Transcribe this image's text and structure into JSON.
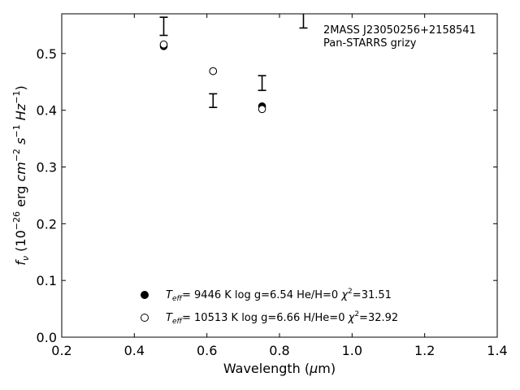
{
  "chart_data": {
    "type": "scatter",
    "title": "",
    "xlabel": "Wavelength (μm)",
    "ylabel": "f_ν (10^-26 erg cm^-2 s^-1 Hz^-1)",
    "xlim": [
      0.2,
      1.4
    ],
    "ylim": [
      0.0,
      0.57
    ],
    "xticks": [
      "0.2",
      "0.4",
      "0.6",
      "0.8",
      "1.0",
      "1.2",
      "1.4"
    ],
    "yticks": [
      "0.0",
      "0.1",
      "0.2",
      "0.3",
      "0.4",
      "0.5"
    ],
    "grid": false,
    "annotation": [
      "2MASS J23050256+2158541",
      "Pan-STARRS grizy"
    ],
    "observed": [
      {
        "x": 0.481,
        "y": 0.548,
        "err": 0.016
      },
      {
        "x": 0.617,
        "y": 0.417,
        "err": 0.012
      },
      {
        "x": 0.752,
        "y": 0.448,
        "err": 0.013
      },
      {
        "x": 0.866,
        "y": 0.558,
        "err": 0.013
      }
    ],
    "series": [
      {
        "name": "T_eff = 9446 K  log g=6.54  He/H=0  χ²=31.51",
        "marker": "filled-circle",
        "x": [
          0.481,
          0.617,
          0.752
        ],
        "y": [
          0.513,
          0.469,
          0.407
        ]
      },
      {
        "name": "T_eff = 10513 K  log g=6.66  H/He=0  χ²=32.92",
        "marker": "open-circle",
        "x": [
          0.481,
          0.617,
          0.752
        ],
        "y": [
          0.516,
          0.469,
          0.402
        ]
      }
    ],
    "legend": [
      {
        "marker": "filled-circle",
        "teff": "9446 K",
        "logg": "log g=6.54",
        "comp": "He/H=0",
        "chi2": "31.51"
      },
      {
        "marker": "open-circle",
        "teff": "10513 K",
        "logg": "log g=6.66",
        "comp": "H/He=0",
        "chi2": "32.92"
      }
    ],
    "legend_position": "lower-center"
  }
}
